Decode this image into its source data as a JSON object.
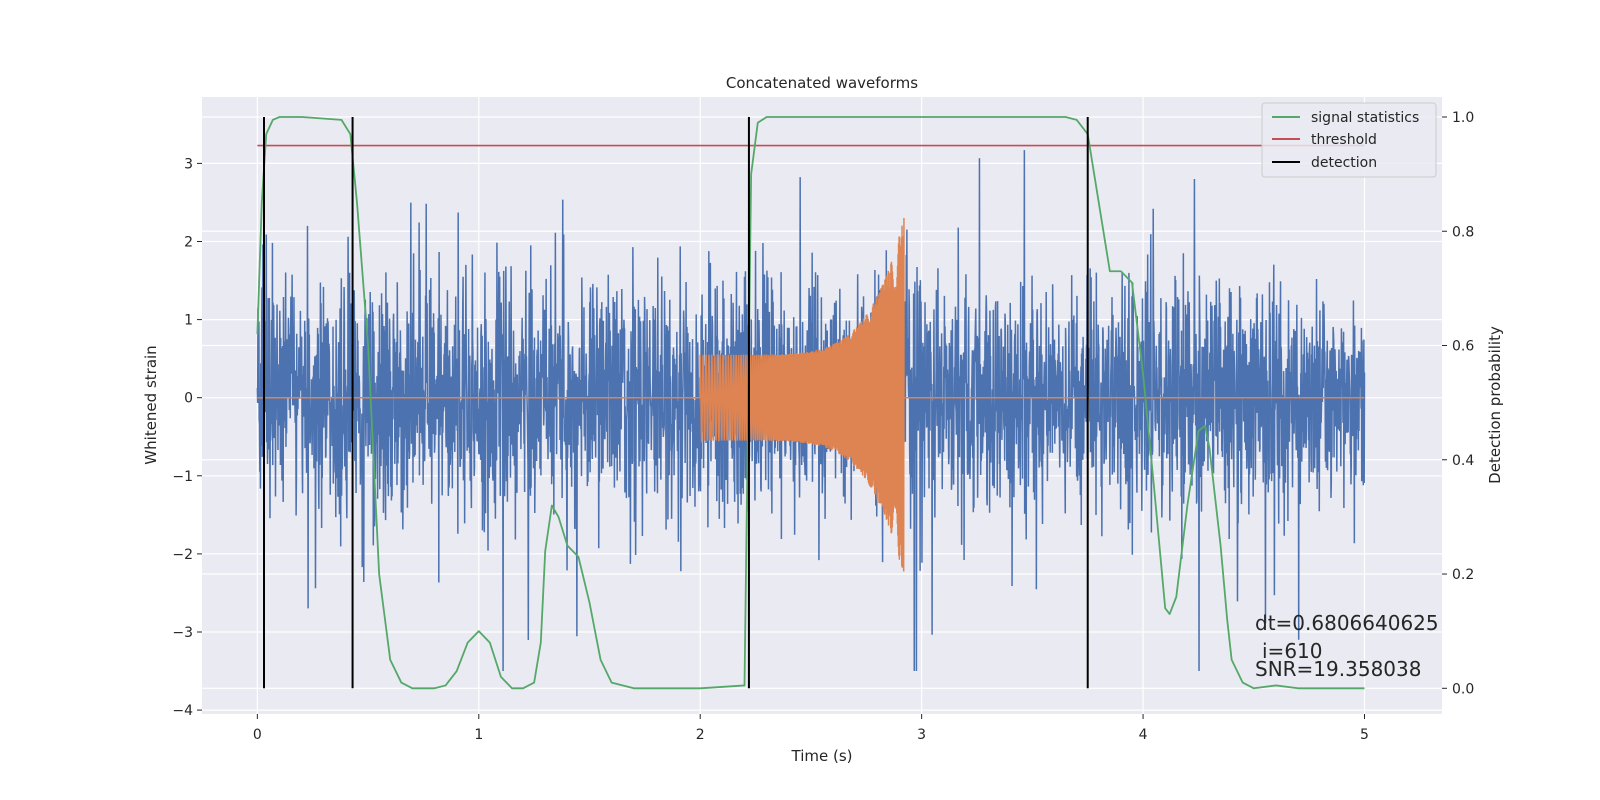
{
  "chart_data": {
    "type": "line",
    "title": "Concatenated waveforms",
    "xlabel": "Time (s)",
    "ylabel": "Whitened strain",
    "y2label": "Detection probability",
    "xlim": [
      -0.25,
      5.35
    ],
    "ylim": [
      -4.05,
      3.85
    ],
    "y2lim": [
      -0.045,
      1.035
    ],
    "x_ticks": [
      0,
      1,
      2,
      3,
      4,
      5
    ],
    "y_ticks": [
      -4,
      -3,
      -2,
      -1,
      0,
      1,
      2,
      3
    ],
    "y2_ticks": [
      0.0,
      0.2,
      0.4,
      0.6,
      0.8,
      1.0
    ],
    "grid": true,
    "legend_position": "top-right",
    "colors": {
      "strain": "#4c72b0",
      "injected_waveform": "#dd8452",
      "signal_statistics": "#55a868",
      "threshold": "#c44e52",
      "detection": "#000000",
      "axes_bg": "#eaeaf2",
      "grid": "#ffffff"
    },
    "legend": [
      "signal statistics",
      "threshold",
      "detection"
    ],
    "threshold": 0.95,
    "threshold_x_range": [
      0,
      5
    ],
    "detections": [
      0.03,
      0.43,
      2.22,
      3.75
    ],
    "detection_range": [
      -0.0,
      1.0
    ],
    "strain": {
      "x_range": [
        0,
        5
      ],
      "envelope_sigma": 0.6,
      "max_abs": 3.5
    },
    "injected_waveform": {
      "x_start": 2.0,
      "x_end": 2.92,
      "start_amplitude": 0.55,
      "peak_amplitude": 2.3
    },
    "signal_statistics": {
      "x": [
        0.0,
        0.02,
        0.04,
        0.07,
        0.1,
        0.2,
        0.38,
        0.42,
        0.45,
        0.5,
        0.55,
        0.6,
        0.65,
        0.7,
        0.8,
        0.85,
        0.9,
        0.95,
        1.0,
        1.05,
        1.1,
        1.15,
        1.2,
        1.25,
        1.28,
        1.3,
        1.33,
        1.36,
        1.4,
        1.45,
        1.5,
        1.55,
        1.6,
        1.7,
        2.0,
        2.2,
        2.21,
        2.23,
        2.26,
        2.3,
        2.5,
        3.0,
        3.5,
        3.65,
        3.7,
        3.75,
        3.8,
        3.85,
        3.9,
        3.95,
        4.0,
        4.05,
        4.1,
        4.12,
        4.15,
        4.2,
        4.25,
        4.28,
        4.3,
        4.35,
        4.38,
        4.4,
        4.45,
        4.5,
        4.6,
        4.7,
        5.0
      ],
      "y": [
        0.62,
        0.85,
        0.97,
        0.995,
        1.0,
        1.0,
        0.995,
        0.97,
        0.85,
        0.6,
        0.2,
        0.05,
        0.01,
        0.0,
        0.0,
        0.005,
        0.03,
        0.08,
        0.1,
        0.08,
        0.02,
        0.0,
        0.0,
        0.01,
        0.08,
        0.24,
        0.32,
        0.3,
        0.25,
        0.23,
        0.15,
        0.05,
        0.01,
        0.0,
        0.0,
        0.005,
        0.3,
        0.9,
        0.99,
        1.0,
        1.0,
        1.0,
        1.0,
        1.0,
        0.995,
        0.97,
        0.85,
        0.73,
        0.73,
        0.71,
        0.55,
        0.35,
        0.14,
        0.13,
        0.16,
        0.32,
        0.45,
        0.46,
        0.42,
        0.25,
        0.12,
        0.05,
        0.01,
        0.0,
        0.005,
        0.0,
        0.0
      ]
    },
    "annotations": {
      "dt": "dt=0.6806640625",
      "i": "i=610",
      "snr": "SNR=19.358038"
    }
  }
}
